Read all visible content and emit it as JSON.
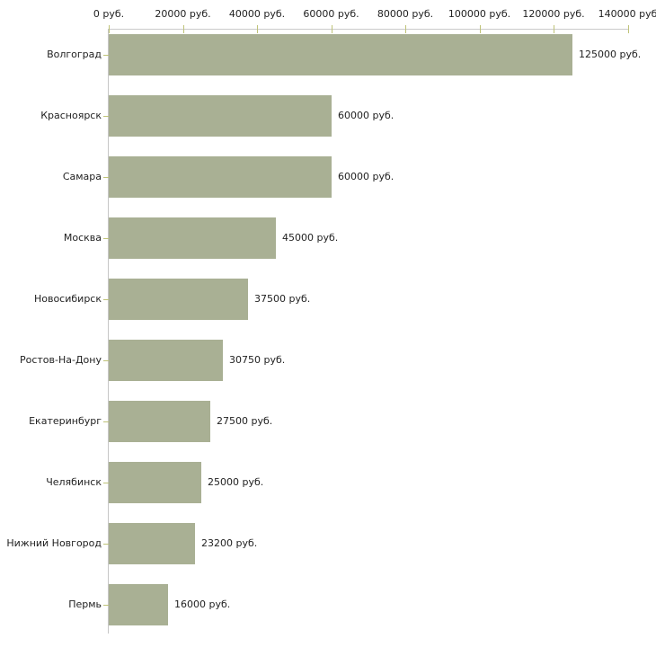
{
  "chart_data": {
    "type": "bar",
    "orientation": "horizontal",
    "title": "",
    "xlabel": "",
    "ylabel": "",
    "grid": false,
    "legend": false,
    "categories": [
      "Волгоград",
      "Красноярск",
      "Самара",
      "Москва",
      "Новосибирск",
      "Ростов-На-Дону",
      "Екатеринбург",
      "Челябинск",
      "Нижний Новгород",
      "Пермь"
    ],
    "values": [
      125000,
      60000,
      60000,
      45000,
      37500,
      30750,
      27500,
      25000,
      23200,
      16000
    ],
    "value_labels": [
      "125000 руб.",
      "60000 руб.",
      "60000 руб.",
      "45000 руб.",
      "37500 руб.",
      "30750 руб.",
      "27500 руб.",
      "25000 руб.",
      "23200 руб.",
      "16000 руб."
    ],
    "x_axis": {
      "position": "top",
      "range": [
        0,
        140000
      ],
      "ticks": [
        0,
        20000,
        40000,
        60000,
        80000,
        100000,
        120000,
        140000
      ],
      "tick_labels": [
        "0 руб.",
        "20000 руб.",
        "40000 руб.",
        "60000 руб.",
        "80000 руб.",
        "100000 руб.",
        "120000 руб.",
        "140000 руб"
      ]
    },
    "colors": {
      "bar": "#a9b094",
      "axis_line": "#cbcbcb",
      "tick_mark": "#bfc378",
      "text": "#222222",
      "background": "#ffffff"
    }
  }
}
